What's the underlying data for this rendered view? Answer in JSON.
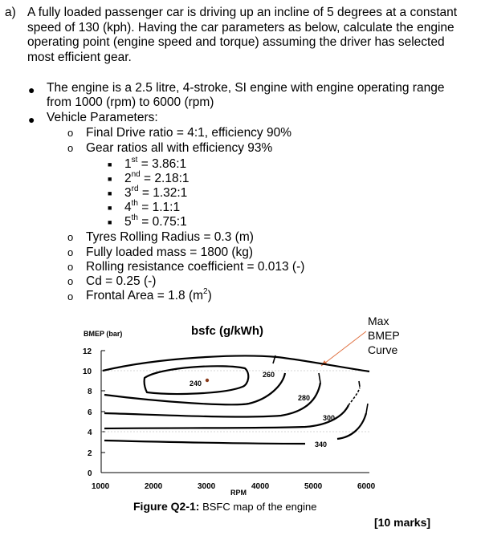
{
  "question": {
    "label": "a)",
    "text": "A fully loaded passenger car is driving up an incline of 5 degrees at a constant speed of 130 (kph). Having the car parameters as below, calculate the engine operating point (engine speed and torque) assuming the driver has selected most efficient gear."
  },
  "bullets": {
    "engine": "The engine is a 2.5 litre, 4-stroke, SI engine with engine operating range from 1000 (rpm) to 6000 (rpm)",
    "vehicle_heading": "Vehicle Parameters:",
    "final_drive": "Final Drive ratio = 4:1, efficiency 90%",
    "gear_heading": "Gear ratios all with efficiency 93%",
    "gears": [
      {
        "num": "1",
        "sup": "st",
        "value": " = 3.86:1"
      },
      {
        "num": "2",
        "sup": "nd",
        "value": " = 2.18:1"
      },
      {
        "num": "3",
        "sup": "rd",
        "value": " = 1.32:1"
      },
      {
        "num": "4",
        "sup": "th",
        "value": " = 1.1:1"
      },
      {
        "num": "5",
        "sup": "th",
        "value": " = 0.75:1"
      }
    ],
    "tyres": "Tyres Rolling Radius = 0.3 (m)",
    "mass": "Fully loaded mass = 1800 (kg)",
    "rolling": "Rolling resistance coefficient = 0.013 (-)",
    "cd": "Cd = 0.25 (-)",
    "frontal_pre": "Frontal Area = 1.8 (m",
    "frontal_sup": "2",
    "frontal_post": ")"
  },
  "chart": {
    "ylabel": "BMEP (bar)",
    "title": "bsfc (g/kWh)",
    "xlabel": "RPM",
    "annotation": [
      "Max",
      "BMEP",
      "Curve"
    ],
    "x_ticks": [
      "1000",
      "2000",
      "3000",
      "4000",
      "5000",
      "6000"
    ],
    "y_ticks": [
      "12",
      "10",
      "8",
      "6",
      "4",
      "2",
      "0"
    ],
    "contour_labels": [
      "240",
      "260",
      "280",
      "300",
      "340"
    ],
    "line_color": "#000000",
    "arrow_color": "#e07040"
  },
  "chart_data": {
    "type": "contour",
    "title": "bsfc (g/kWh)",
    "xlabel": "RPM",
    "ylabel": "BMEP (bar)",
    "xlim": [
      1000,
      6000
    ],
    "ylim": [
      0,
      12
    ],
    "x_ticks": [
      1000,
      2000,
      3000,
      4000,
      5000,
      6000
    ],
    "y_ticks": [
      0,
      2,
      4,
      6,
      8,
      10,
      12
    ],
    "contours": [
      {
        "level": 240,
        "shape": "closed"
      },
      {
        "level": 260,
        "shape": "open"
      },
      {
        "level": 280,
        "shape": "open"
      },
      {
        "level": 300,
        "shape": "open"
      },
      {
        "level": 340,
        "shape": "open"
      }
    ],
    "best_point": {
      "rpm": 3000,
      "bmep": 9.5
    },
    "max_bmep_curve": [
      {
        "rpm": 1000,
        "bmep": 10.0
      },
      {
        "rpm": 2000,
        "bmep": 11.5
      },
      {
        "rpm": 3000,
        "bmep": 11.8
      },
      {
        "rpm": 4000,
        "bmep": 11.3
      },
      {
        "rpm": 5000,
        "bmep": 10.2
      },
      {
        "rpm": 6000,
        "bmep": 9.3
      }
    ]
  },
  "caption": {
    "bold": "Figure Q2-1:",
    "rest": " BSFC map of the engine"
  },
  "marks": "[10 marks]"
}
